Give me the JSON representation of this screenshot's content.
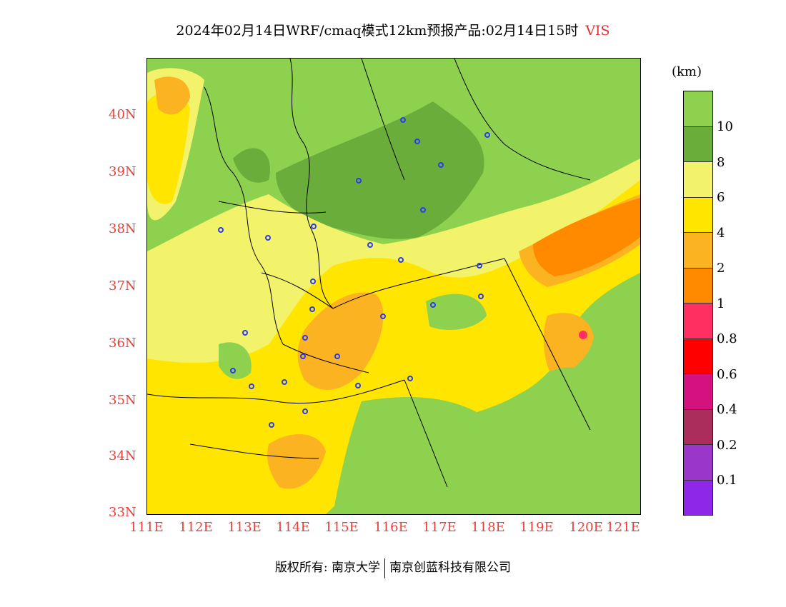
{
  "title": "2024年02月14日WRF/cmaq模式12km预报产品:02月14日15时",
  "variable": "VIS",
  "unit_label": "(km)",
  "lat_ticks": [
    "40N",
    "39N",
    "38N",
    "37N",
    "36N",
    "35N",
    "34N",
    "33N"
  ],
  "lon_ticks": [
    "111E",
    "112E",
    "113E",
    "114E",
    "115E",
    "116E",
    "117E",
    "118E",
    "119E",
    "120E",
    "121E"
  ],
  "colorbar": {
    "colors": [
      "#8ed14f",
      "#6aad3a",
      "#f3f36b",
      "#ffe500",
      "#fcb321",
      "#ff8a00",
      "#ff3061",
      "#ff0000",
      "#d4117e",
      "#ab2d5c",
      "#9a36c9",
      "#8f27e8"
    ],
    "labels": [
      "10",
      "8",
      "6",
      "4",
      "2",
      "1",
      "0.8",
      "0.6",
      "0.4",
      "0.2",
      "0.1"
    ]
  },
  "credit": {
    "left": "版权所有: 南京大学",
    "right": "南京创蓝科技有限公司"
  }
}
